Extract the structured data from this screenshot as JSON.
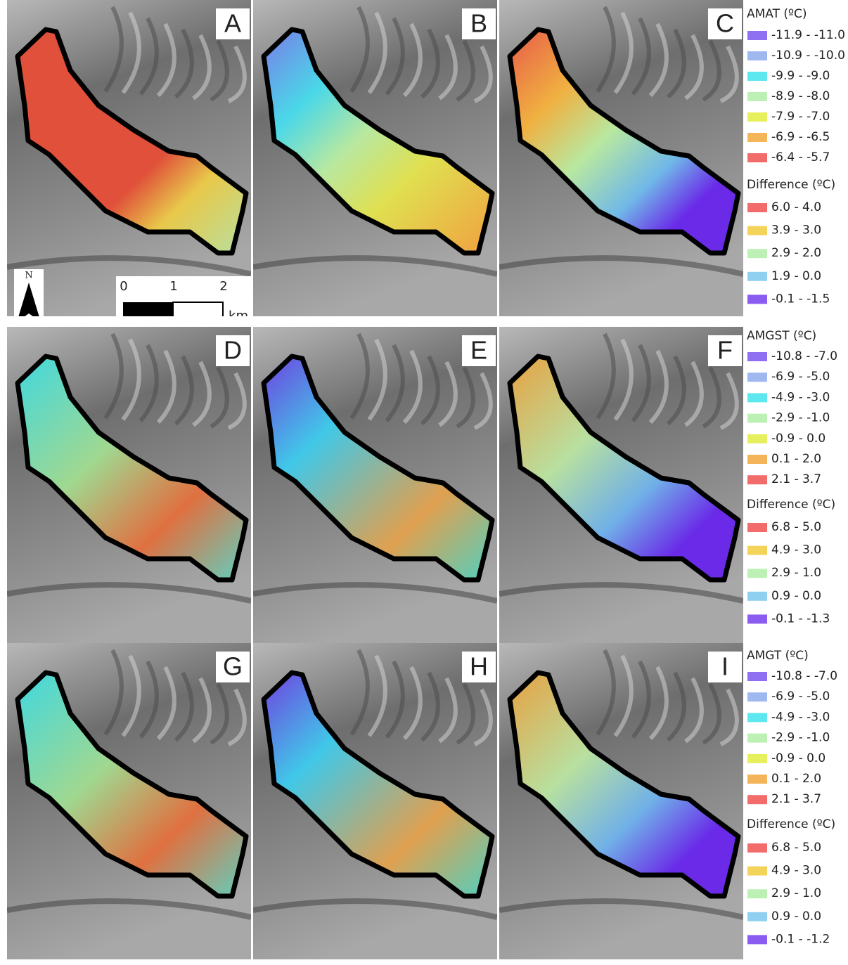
{
  "panels": [
    "A",
    "B",
    "C",
    "D",
    "E",
    "F",
    "G",
    "H",
    "I"
  ],
  "north_label": "N",
  "scale_bar": {
    "ticks": [
      "0",
      "1",
      "2"
    ],
    "unit": "km"
  },
  "legends": [
    {
      "sections": [
        {
          "title": "AMAT (ºC)",
          "items": [
            {
              "label": "-11.9 - -11.0",
              "color": "#8f6ff2"
            },
            {
              "label": "-10.9 - -10.0",
              "color": "#9fb8f0"
            },
            {
              "label": "-9.9 - -9.0",
              "color": "#5ce8ee"
            },
            {
              "label": "-8.9 - -8.0",
              "color": "#bdf0b5"
            },
            {
              "label": "-7.9 - -7.0",
              "color": "#e6ef5c"
            },
            {
              "label": "-6.9 - -6.5",
              "color": "#f4b45a"
            },
            {
              "label": "-6.4 - -5.7",
              "color": "#f26c6c"
            }
          ]
        },
        {
          "title": "Difference (ºC)",
          "items": [
            {
              "label": "6.0 - 4.0",
              "color": "#f26c6c"
            },
            {
              "label": "3.9 - 3.0",
              "color": "#f4d35a"
            },
            {
              "label": "2.9 - 2.0",
              "color": "#bdf0b5"
            },
            {
              "label": "1.9 - 0.0",
              "color": "#8fd0f0"
            },
            {
              "label": "-0.1 - -1.5",
              "color": "#8a5cf0"
            }
          ]
        }
      ]
    },
    {
      "sections": [
        {
          "title": "AMGST (ºC)",
          "items": [
            {
              "label": "-10.8 - -7.0",
              "color": "#8f6ff2"
            },
            {
              "label": "-6.9 - -5.0",
              "color": "#9fb8f0"
            },
            {
              "label": "-4.9 - -3.0",
              "color": "#5ce8ee"
            },
            {
              "label": "-2.9 - -1.0",
              "color": "#bdf0b5"
            },
            {
              "label": "-0.9 - 0.0",
              "color": "#e6ef5c"
            },
            {
              "label": "0.1 - 2.0",
              "color": "#f4b45a"
            },
            {
              "label": "2.1 - 3.7",
              "color": "#f26c6c"
            }
          ]
        },
        {
          "title": "Difference (ºC)",
          "items": [
            {
              "label": "6.8 - 5.0",
              "color": "#f26c6c"
            },
            {
              "label": "4.9 - 3.0",
              "color": "#f4d35a"
            },
            {
              "label": "2.9 - 1.0",
              "color": "#bdf0b5"
            },
            {
              "label": "0.9 - 0.0",
              "color": "#8fd0f0"
            },
            {
              "label": "-0.1 - -1.3",
              "color": "#8a5cf0"
            }
          ]
        }
      ]
    },
    {
      "sections": [
        {
          "title": "AMGT (ºC)",
          "items": [
            {
              "label": "-10.8 - -7.0",
              "color": "#8f6ff2"
            },
            {
              "label": "-6.9 - -5.0",
              "color": "#9fb8f0"
            },
            {
              "label": "-4.9 - -3.0",
              "color": "#5ce8ee"
            },
            {
              "label": "-2.9 - -1.0",
              "color": "#bdf0b5"
            },
            {
              "label": "-0.9 - 0.0",
              "color": "#e6ef5c"
            },
            {
              "label": "0.1 - 2.0",
              "color": "#f4b45a"
            },
            {
              "label": "2.1 - 3.7",
              "color": "#f26c6c"
            }
          ]
        },
        {
          "title": "Difference (ºC)",
          "items": [
            {
              "label": "6.8 - 5.0",
              "color": "#f26c6c"
            },
            {
              "label": "4.9 - 3.0",
              "color": "#f4d35a"
            },
            {
              "label": "2.9 - 1.0",
              "color": "#bdf0b5"
            },
            {
              "label": "0.9 - 0.0",
              "color": "#8fd0f0"
            },
            {
              "label": "-0.1 - -1.2",
              "color": "#8a5cf0"
            }
          ]
        }
      ]
    }
  ]
}
